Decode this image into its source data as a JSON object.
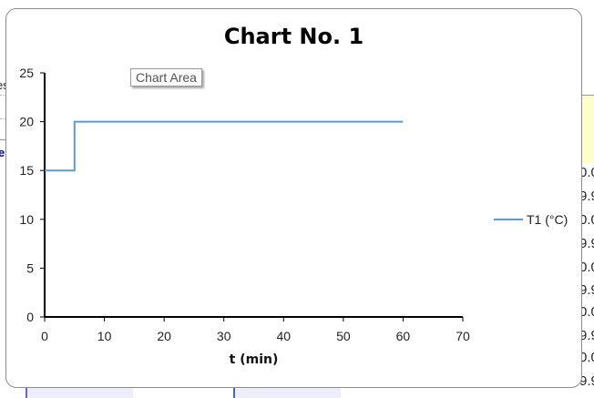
{
  "background": {
    "left_fragments": [
      "es",
      "e"
    ],
    "right_values": [
      "0.0",
      "9.9",
      "0.0",
      "9.9",
      "0.0",
      "9.9",
      "0.0",
      "9.9",
      "0.0",
      "9.9"
    ]
  },
  "tooltip": "Chart Area",
  "colors": {
    "series": "#5b9bd5",
    "axis": "#000000"
  },
  "chart_data": {
    "type": "line",
    "title": "Chart No. 1",
    "xlabel": "t (min)",
    "ylabel": "",
    "xlim": [
      0,
      70
    ],
    "ylim": [
      0,
      25
    ],
    "xticks": [
      0,
      10,
      20,
      30,
      40,
      50,
      60,
      70
    ],
    "yticks": [
      0,
      5,
      10,
      15,
      20,
      25
    ],
    "grid": false,
    "legend_position": "right",
    "series": [
      {
        "name": "T1 (°C)",
        "x": [
          0,
          5,
          5,
          60
        ],
        "y": [
          15,
          15,
          20,
          20
        ]
      }
    ]
  }
}
